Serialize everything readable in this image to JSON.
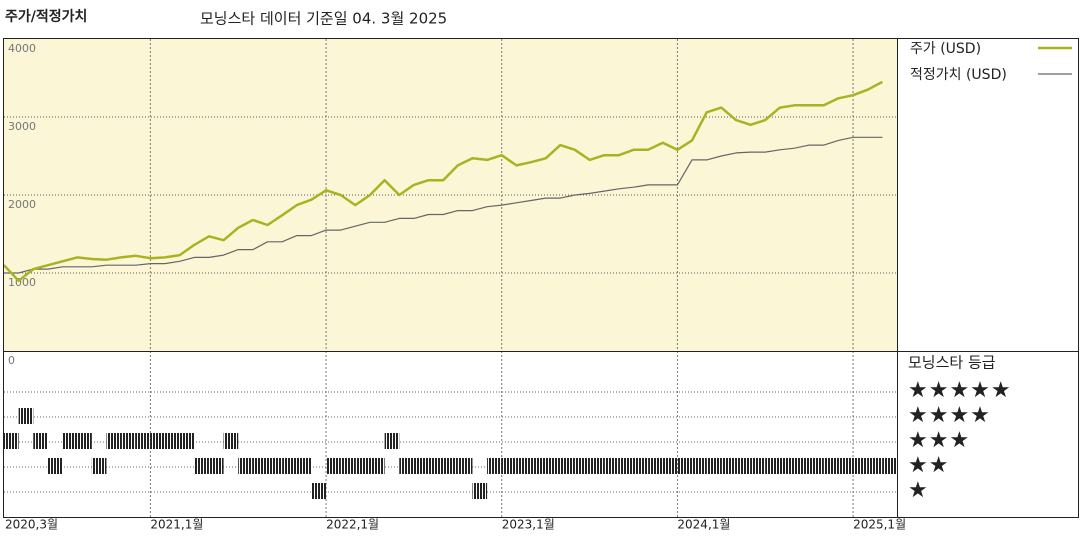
{
  "chart_data": {
    "type": "line",
    "title": "주가/적정가치",
    "subtitle": "모닝스타 데이터 기준일 04. 3월 2025",
    "x": [
      "2020-03",
      "2020-04",
      "2020-05",
      "2020-06",
      "2020-07",
      "2020-08",
      "2020-09",
      "2020-10",
      "2020-11",
      "2020-12",
      "2021-01",
      "2021-02",
      "2021-03",
      "2021-04",
      "2021-05",
      "2021-06",
      "2021-07",
      "2021-08",
      "2021-09",
      "2021-10",
      "2021-11",
      "2021-12",
      "2022-01",
      "2022-02",
      "2022-03",
      "2022-04",
      "2022-05",
      "2022-06",
      "2022-07",
      "2022-08",
      "2022-09",
      "2022-10",
      "2022-11",
      "2022-12",
      "2023-01",
      "2023-02",
      "2023-03",
      "2023-04",
      "2023-05",
      "2023-06",
      "2023-07",
      "2023-08",
      "2023-09",
      "2023-10",
      "2023-11",
      "2023-12",
      "2024-01",
      "2024-02",
      "2024-03",
      "2024-04",
      "2024-05",
      "2024-06",
      "2024-07",
      "2024-08",
      "2024-09",
      "2024-10",
      "2024-11",
      "2024-12",
      "2025-01",
      "2025-02",
      "2025-03"
    ],
    "series": [
      {
        "name": "주가 (USD)",
        "color": "#a9b322",
        "width": 2.5,
        "values": [
          1100,
          900,
          1050,
          1100,
          1150,
          1200,
          1180,
          1170,
          1200,
          1220,
          1190,
          1200,
          1230,
          1360,
          1470,
          1420,
          1580,
          1680,
          1615,
          1740,
          1870,
          1940,
          2060,
          2000,
          1870,
          2000,
          2190,
          2000,
          2130,
          2190,
          2190,
          2380,
          2470,
          2450,
          2510,
          2380,
          2420,
          2470,
          2640,
          2580,
          2450,
          2510,
          2510,
          2580,
          2580,
          2670,
          2580,
          2700,
          3060,
          3120,
          2960,
          2900,
          2960,
          3120,
          3150,
          3150,
          3150,
          3240,
          3280,
          3350,
          3450
        ]
      },
      {
        "name": "적정가치 (USD)",
        "color": "#666666",
        "width": 1.2,
        "values": [
          1000,
          1000,
          1050,
          1050,
          1080,
          1080,
          1080,
          1100,
          1100,
          1100,
          1120,
          1120,
          1150,
          1200,
          1200,
          1230,
          1300,
          1300,
          1400,
          1400,
          1480,
          1480,
          1550,
          1550,
          1600,
          1650,
          1650,
          1700,
          1700,
          1750,
          1750,
          1800,
          1800,
          1850,
          1870,
          1900,
          1930,
          1960,
          1960,
          2000,
          2020,
          2050,
          2080,
          2100,
          2130,
          2130,
          2130,
          2450,
          2450,
          2500,
          2540,
          2550,
          2550,
          2580,
          2600,
          2640,
          2640,
          2700,
          2740,
          2740,
          2740
        ]
      }
    ],
    "xlim": [
      "2020-03",
      "2025-04"
    ],
    "xticks": [
      {
        "value": "2020-03",
        "label": "2020,3월"
      },
      {
        "value": "2021-01",
        "label": "2021,1월"
      },
      {
        "value": "2022-01",
        "label": "2022,1월"
      },
      {
        "value": "2023-01",
        "label": "2023,1월"
      },
      {
        "value": "2024-01",
        "label": "2024,1월"
      },
      {
        "value": "2025-01",
        "label": "2025,1월"
      }
    ],
    "ylim": [
      0,
      4000
    ],
    "yticks": [
      0,
      1000,
      2000,
      3000,
      4000
    ],
    "grid": true,
    "background": "#faf6d6",
    "rating": {
      "title": "모닝스타 등급",
      "levels": [
        {
          "value": 5,
          "label": "★★★★★"
        },
        {
          "value": 4,
          "label": "★★★★"
        },
        {
          "value": 3,
          "label": "★★★"
        },
        {
          "value": 2,
          "label": "★★"
        },
        {
          "value": 1,
          "label": "★"
        }
      ],
      "values": [
        3,
        4,
        3,
        2,
        3,
        3,
        2,
        3,
        3,
        3,
        3,
        3,
        3,
        2,
        2,
        3,
        2,
        2,
        2,
        2,
        2,
        1,
        2,
        2,
        2,
        2,
        3,
        2,
        2,
        2,
        2,
        2,
        1,
        2,
        2,
        2,
        2,
        2,
        2,
        2,
        2,
        2,
        2,
        2,
        2,
        2,
        2,
        2,
        2,
        2,
        2,
        2,
        2,
        2,
        2,
        2,
        2,
        2,
        2,
        2,
        2
      ]
    }
  }
}
